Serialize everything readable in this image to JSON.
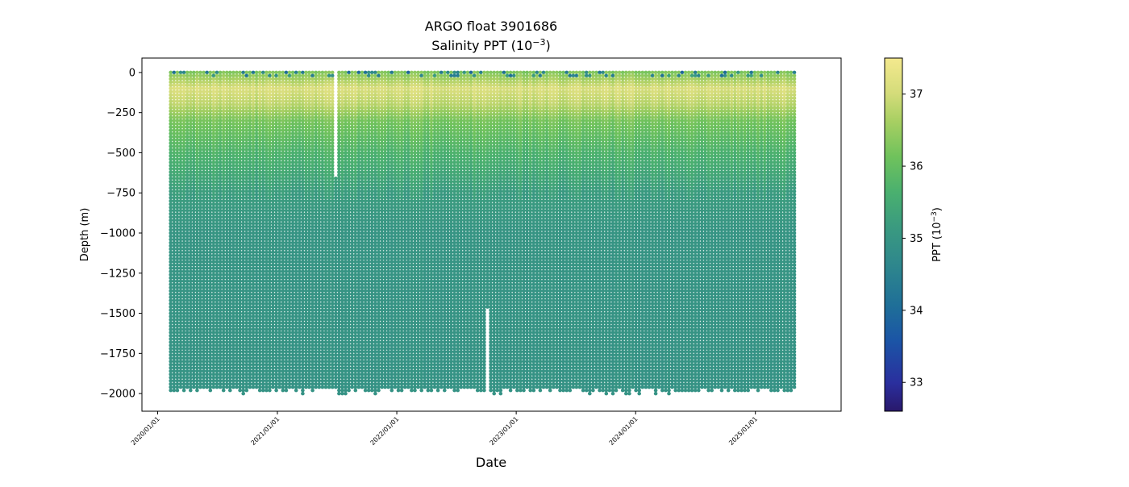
{
  "chart_data": {
    "type": "scatter",
    "title": "ARGO float 3901686",
    "subtitle": "Salinity PPT (10",
    "subtitle_exp": "−3",
    "subtitle_tail": ")",
    "xlabel": "Date",
    "ylabel": "Depth (m)",
    "x_ticks": [
      "2020/01/01",
      "2021/01/01",
      "2022/01/01",
      "2023/01/01",
      "2024/01/01",
      "2025/01/01"
    ],
    "xlim": [
      "2019/11/14",
      "2025/09/20"
    ],
    "y_ticks": [
      0,
      -250,
      -500,
      -750,
      -1000,
      -1250,
      -1500,
      -1750,
      -2000
    ],
    "ylim": [
      -2110,
      90
    ],
    "data_x_range": [
      "2020/02/10",
      "2025/04/30"
    ],
    "data_depth_range": [
      -2000,
      0
    ],
    "colorbar": {
      "label": "PPT (10",
      "label_exp": "−3",
      "label_tail": ")",
      "range": [
        32.6,
        37.5
      ],
      "ticks": [
        "33",
        "34",
        "35",
        "36",
        "37"
      ],
      "colormap": "haline"
    },
    "profile": [
      {
        "depth": 0,
        "value": 36.3
      },
      {
        "depth": -100,
        "value": 37.1
      },
      {
        "depth": -200,
        "value": 36.8
      },
      {
        "depth": -300,
        "value": 36.2
      },
      {
        "depth": -500,
        "value": 35.7
      },
      {
        "depth": -750,
        "value": 35.2
      },
      {
        "depth": -1000,
        "value": 35.0
      },
      {
        "depth": -2000,
        "value": 34.95
      }
    ],
    "gaps": [
      {
        "start": "2021/06/25",
        "end": "2021/07/05",
        "from_depth": 0,
        "to_depth": -640
      },
      {
        "start": "2022/09/28",
        "end": "2022/10/12",
        "from_depth": -1470,
        "to_depth": -2000
      }
    ],
    "grid": false,
    "legend": "none"
  }
}
